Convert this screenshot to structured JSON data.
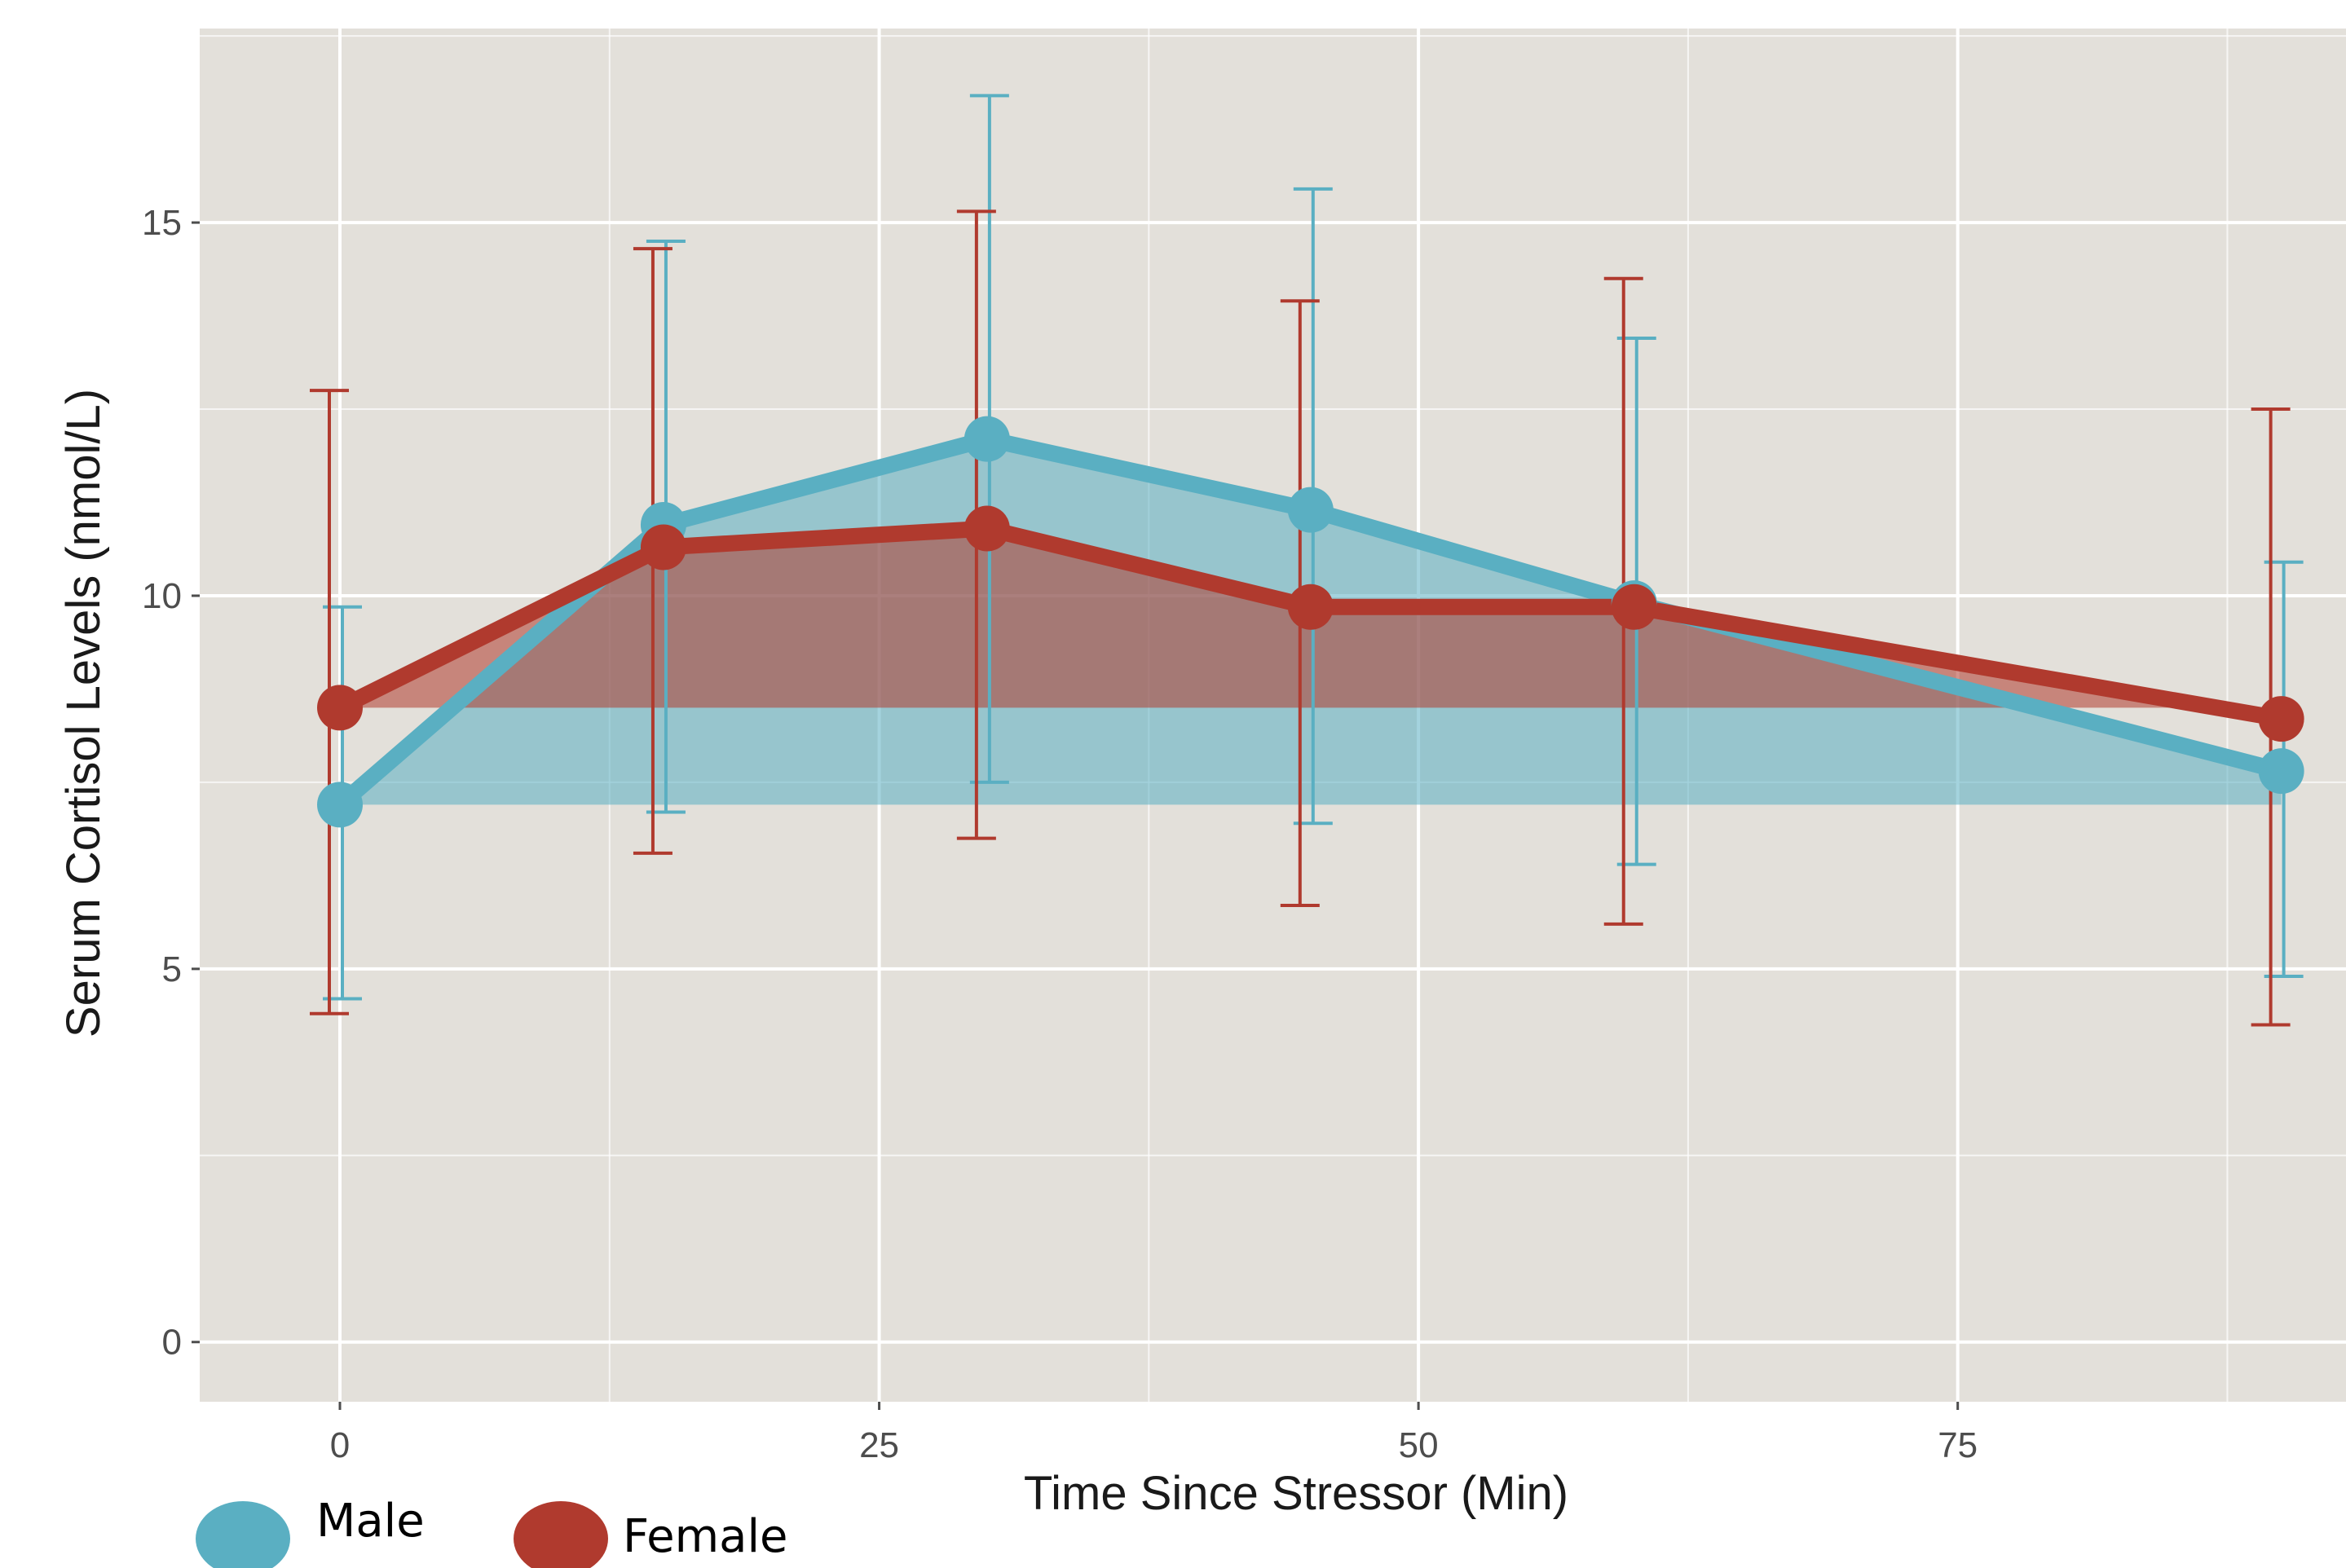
{
  "chart_data": {
    "type": "line",
    "title": "",
    "xlabel": "Time Since Stressor (Min)",
    "ylabel": "Serum Cortisol Levels (nmol/L)",
    "xlim": [
      -6.5,
      93
    ],
    "ylim": [
      -0.8,
      17.6
    ],
    "x_ticks": [
      0,
      25,
      50,
      75
    ],
    "y_ticks": [
      0,
      5,
      10,
      15
    ],
    "grid": true,
    "legend_position": "bottom-left",
    "colors": {
      "panel": "#e3e0da",
      "grid": "#ffffff",
      "Male": "#5aafc2",
      "Female": "#b03a2e"
    },
    "x": [
      0,
      15,
      30,
      45,
      60,
      90
    ],
    "series": [
      {
        "name": "Male",
        "values": [
          7.2,
          10.95,
          12.1,
          11.15,
          9.9,
          7.65
        ],
        "error_low": [
          4.6,
          7.1,
          7.5,
          6.95,
          6.4,
          4.9
        ],
        "error_high": [
          9.85,
          14.75,
          16.7,
          15.45,
          13.45,
          10.45
        ]
      },
      {
        "name": "Female",
        "values": [
          8.5,
          10.65,
          10.9,
          9.85,
          9.85,
          8.35
        ],
        "error_low": [
          4.4,
          6.55,
          6.75,
          5.85,
          5.6,
          4.25
        ],
        "error_high": [
          12.75,
          14.65,
          15.15,
          13.95,
          14.25,
          12.5
        ]
      }
    ]
  }
}
